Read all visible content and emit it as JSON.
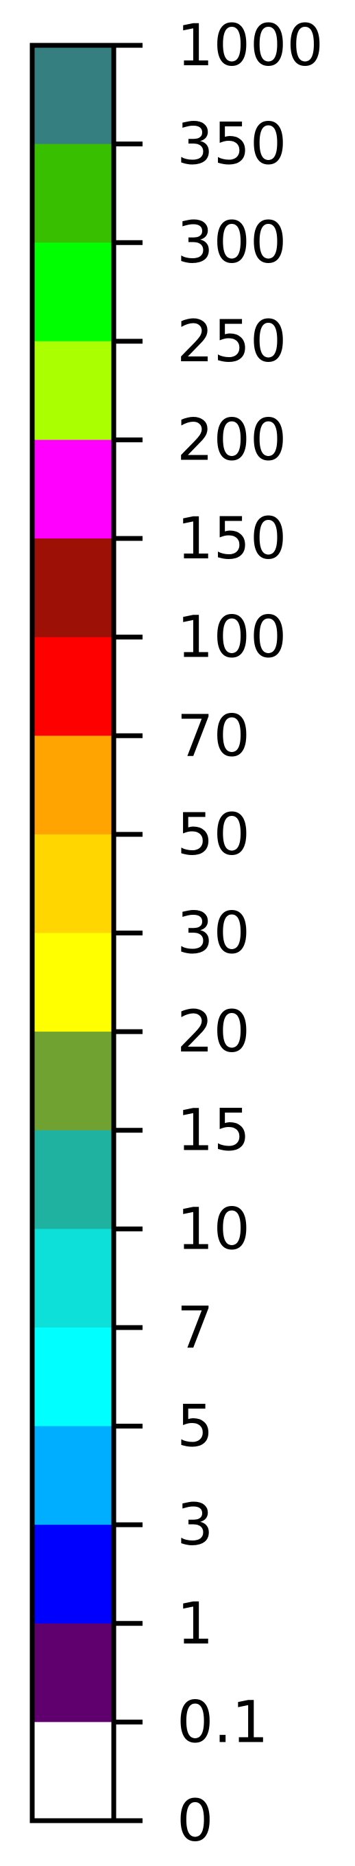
{
  "chart_data": {
    "type": "colorbar",
    "orientation": "vertical",
    "scale": "discrete",
    "boundaries": [
      "1000",
      "350",
      "300",
      "250",
      "200",
      "150",
      "100",
      "70",
      "50",
      "30",
      "20",
      "15",
      "10",
      "7",
      "5",
      "3",
      "1",
      "0.1",
      "0"
    ],
    "colors": [
      "#357f80",
      "#37bf00",
      "#00ff00",
      "#aaff00",
      "#ff00ff",
      "#9c1006",
      "#ff0000",
      "#ffa400",
      "#ffd600",
      "#ffff00",
      "#70a232",
      "#20b2a0",
      "#0ce0d8",
      "#00ffff",
      "#00aeff",
      "#0000ff",
      "#5f006e",
      "#ffffff"
    ],
    "frame_color": "#000000"
  }
}
